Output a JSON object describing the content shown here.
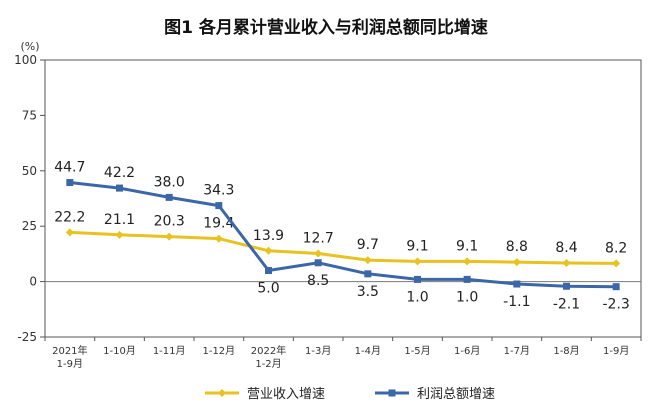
{
  "chart_data": {
    "type": "line",
    "title": "图1  各月累计营业收入与利润总额同比增速",
    "unit_label": "(%)",
    "categories": [
      [
        "2021年",
        "1-9月"
      ],
      [
        "1-10月"
      ],
      [
        "1-11月"
      ],
      [
        "1-12月"
      ],
      [
        "2022年",
        "1-2月"
      ],
      [
        "1-3月"
      ],
      [
        "1-4月"
      ],
      [
        "1-5月"
      ],
      [
        "1-6月"
      ],
      [
        "1-7月"
      ],
      [
        "1-8月"
      ],
      [
        "1-9月"
      ]
    ],
    "ylim": [
      -25,
      100
    ],
    "yticks": [
      -25,
      0,
      25,
      50,
      75,
      100
    ],
    "grid": false,
    "legend_position": "bottom",
    "series": [
      {
        "name": "营业收入增速",
        "color": "#E8C21E",
        "values": [
          22.2,
          21.1,
          20.3,
          19.4,
          13.9,
          12.7,
          9.7,
          9.1,
          9.1,
          8.8,
          8.4,
          8.2
        ],
        "labels": [
          "22.2",
          "21.1",
          "20.3",
          "19.4",
          "13.9",
          "12.7",
          "9.7",
          "9.1",
          "9.1",
          "8.8",
          "8.4",
          "8.2"
        ]
      },
      {
        "name": "利润总额增速",
        "color": "#3B67A8",
        "values": [
          44.7,
          42.2,
          38.0,
          34.3,
          5.0,
          8.5,
          3.5,
          1.0,
          1.0,
          -1.1,
          -2.1,
          -2.3
        ],
        "labels": [
          "44.7",
          "42.2",
          "38.0",
          "34.3",
          "5.0",
          "8.5",
          "3.5",
          "1.0",
          "1.0",
          "-1.1",
          "-2.1",
          "-2.3"
        ]
      }
    ]
  }
}
